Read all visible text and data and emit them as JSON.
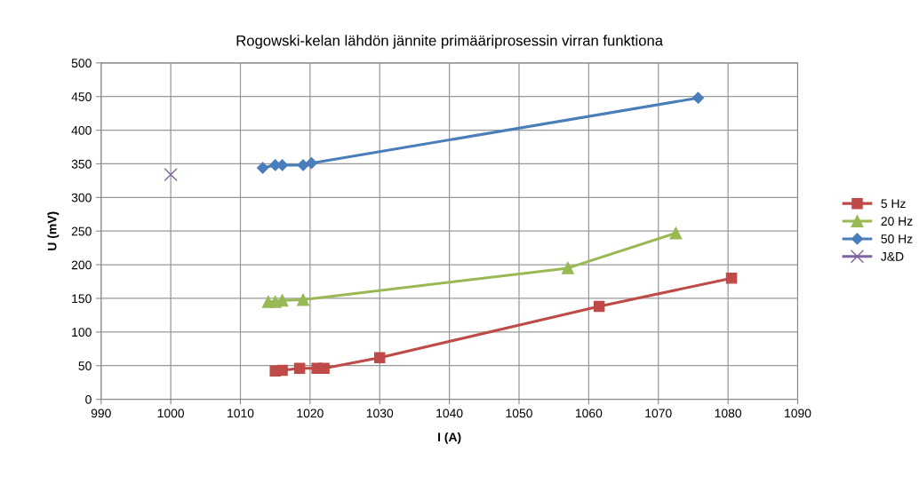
{
  "chart_data": {
    "type": "line",
    "title": "Rogowski-kelan lähdön jännite primääriprosessin virran funktiona",
    "xlabel": "I (A)",
    "ylabel": "U (mV)",
    "xlim": [
      990,
      1090
    ],
    "xticks": [
      990,
      1000,
      1010,
      1020,
      1030,
      1040,
      1050,
      1060,
      1070,
      1080,
      1090
    ],
    "ylim": [
      0,
      500
    ],
    "yticks": [
      0,
      50,
      100,
      150,
      200,
      250,
      300,
      350,
      400,
      450,
      500
    ],
    "grid": true,
    "legend": "right",
    "line_style": "solid",
    "series": [
      {
        "name": "5 Hz",
        "color": "#be4b48",
        "marker": "square",
        "x": [
          1015,
          1016,
          1018.5,
          1021,
          1022,
          1030,
          1061.5,
          1080.5
        ],
        "values": [
          42,
          43,
          46,
          46,
          46,
          62,
          138,
          180
        ]
      },
      {
        "name": "20 Hz",
        "color": "#98b954",
        "marker": "triangle",
        "x": [
          1014,
          1015,
          1016,
          1019,
          1057,
          1072.5
        ],
        "values": [
          145,
          145,
          147,
          148,
          195,
          247
        ]
      },
      {
        "name": "50 Hz",
        "color": "#4a7ebb",
        "marker": "diamond",
        "x": [
          1013.2,
          1015,
          1016,
          1019,
          1020.2,
          1075.7
        ],
        "values": [
          344,
          348,
          348,
          348,
          351,
          448
        ]
      },
      {
        "name": "J&D",
        "color": "#7e649e",
        "marker": "cross",
        "type": "scatter",
        "x": [
          1000
        ],
        "values": [
          334
        ]
      }
    ]
  }
}
